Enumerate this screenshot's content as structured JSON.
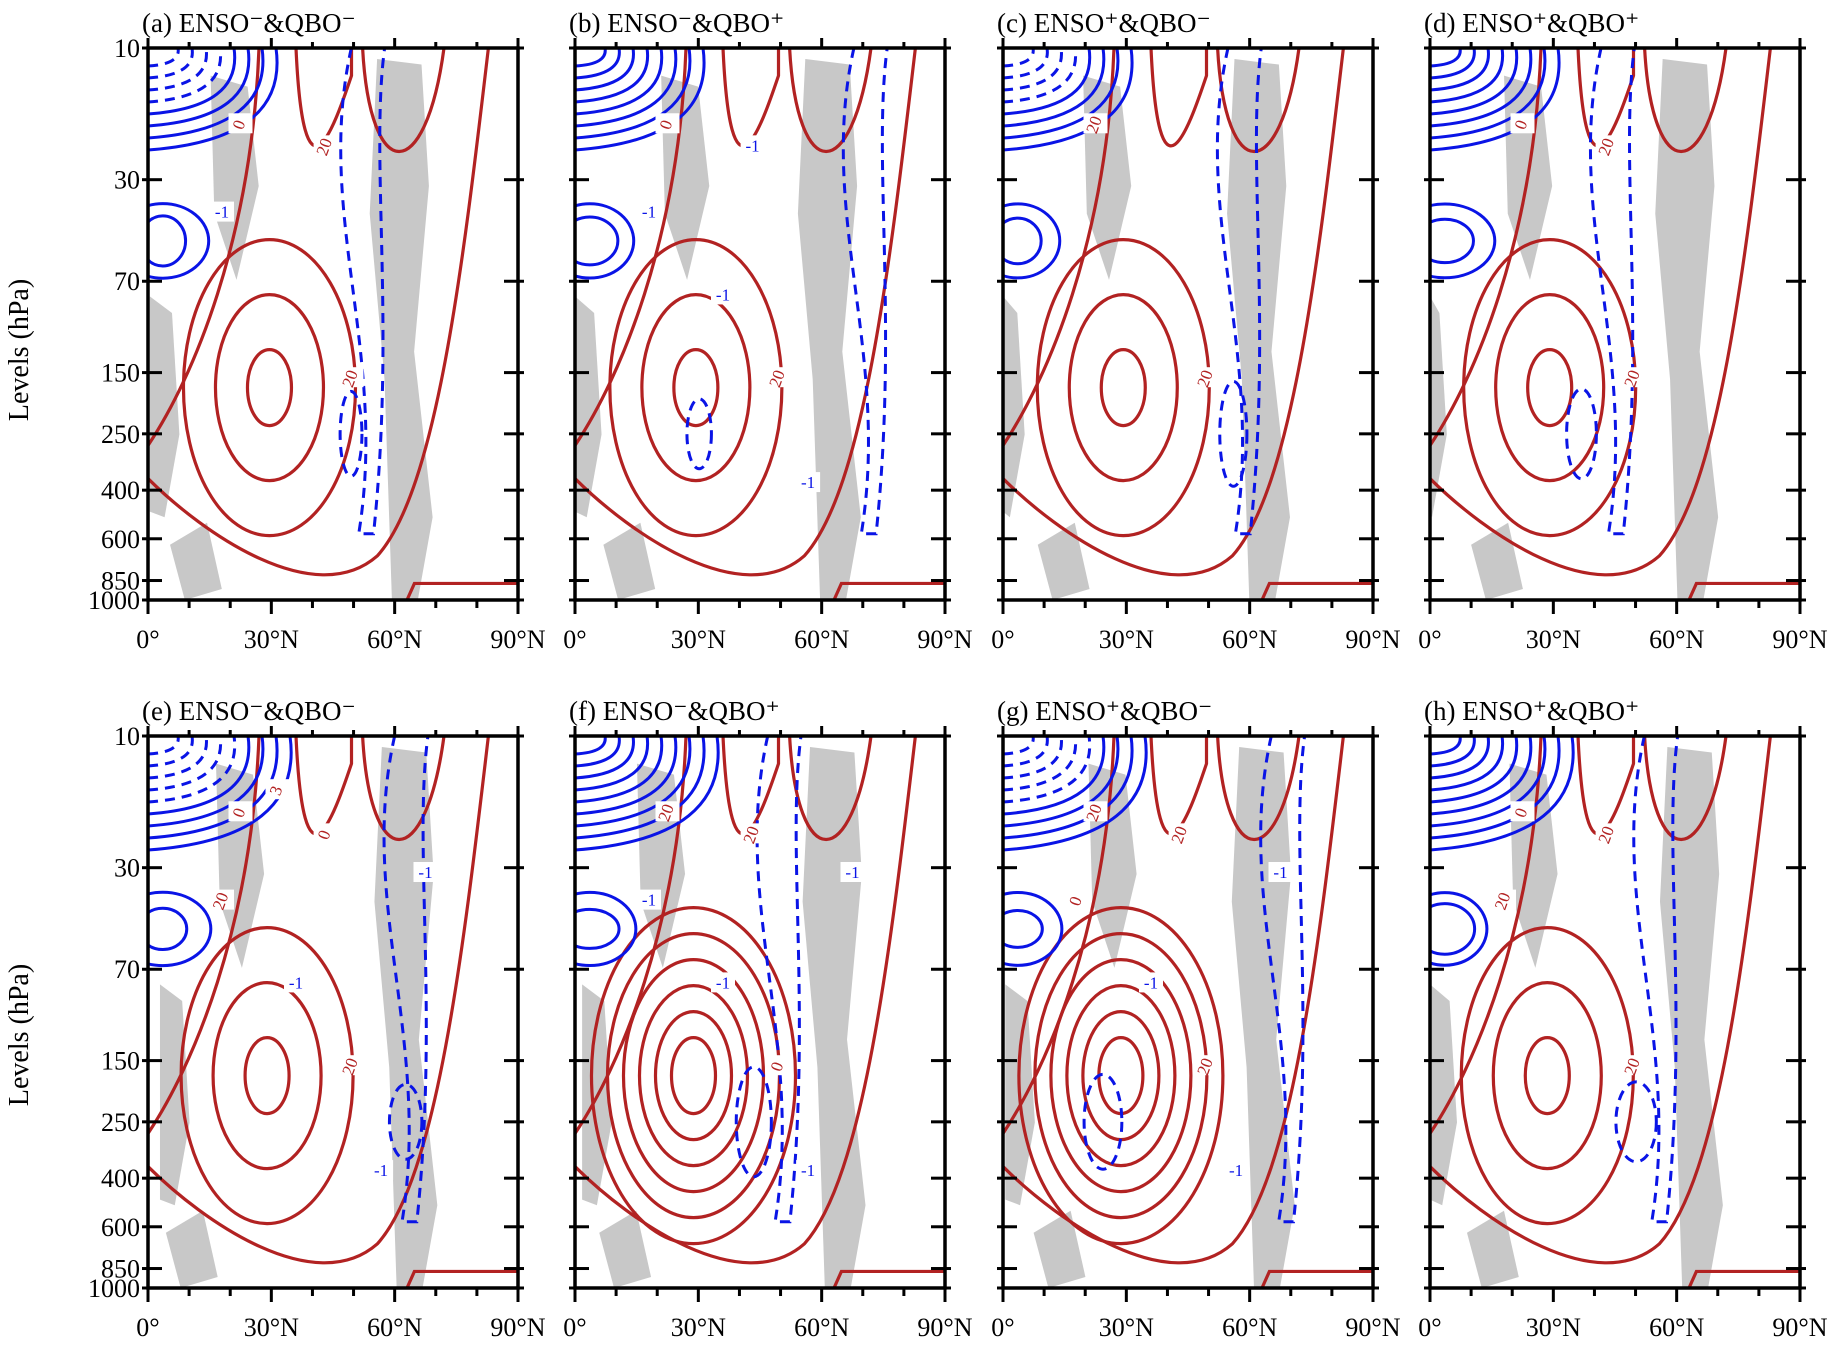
{
  "figure": {
    "ylabel": "Levels (hPa)",
    "pressure_ticks": [
      "10",
      "30",
      "70",
      "150",
      "250",
      "400",
      "600",
      "850",
      "1000"
    ],
    "lat_ticks": [
      "0°",
      "30°N",
      "60°N",
      "90°N"
    ],
    "colors": {
      "positive_contour": "#b22222",
      "anomaly_contour": "#0a14e6",
      "shading": "#c8c8c8"
    }
  },
  "chart_data": [
    {
      "type": "contour",
      "panel": "a",
      "title": "(a) ENSO⁻&QBO⁻",
      "labels": [
        "0",
        "20",
        "20",
        "-1"
      ]
    },
    {
      "type": "contour",
      "panel": "b",
      "title": "(b) ENSO⁻&QBO⁺",
      "labels": [
        "0",
        "20",
        "-1",
        "-1",
        "-1",
        "-1"
      ]
    },
    {
      "type": "contour",
      "panel": "c",
      "title": "(c) ENSO⁺&QBO⁻",
      "labels": [
        "20",
        "20"
      ]
    },
    {
      "type": "contour",
      "panel": "d",
      "title": "(d) ENSO⁺&QBO⁺",
      "labels": [
        "0",
        "20",
        "20"
      ]
    },
    {
      "type": "contour",
      "panel": "e",
      "title": "(e) ENSO⁻&QBO⁻",
      "labels": [
        "0",
        "20",
        "0",
        "20",
        "-1",
        "-1",
        "-1",
        "3"
      ]
    },
    {
      "type": "contour",
      "panel": "f",
      "title": "(f) ENSO⁻&QBO⁺",
      "labels": [
        "20",
        "0",
        "20",
        "-1",
        "-1",
        "-1",
        "-1"
      ]
    },
    {
      "type": "contour",
      "panel": "g",
      "title": "(g) ENSO⁺&QBO⁻",
      "labels": [
        "20",
        "20",
        "20",
        "0",
        "-1",
        "-1",
        "-1"
      ]
    },
    {
      "type": "contour",
      "panel": "h",
      "title": "(h) ENSO⁺&QBO⁺",
      "labels": [
        "0",
        "20",
        "20",
        "20"
      ]
    }
  ]
}
